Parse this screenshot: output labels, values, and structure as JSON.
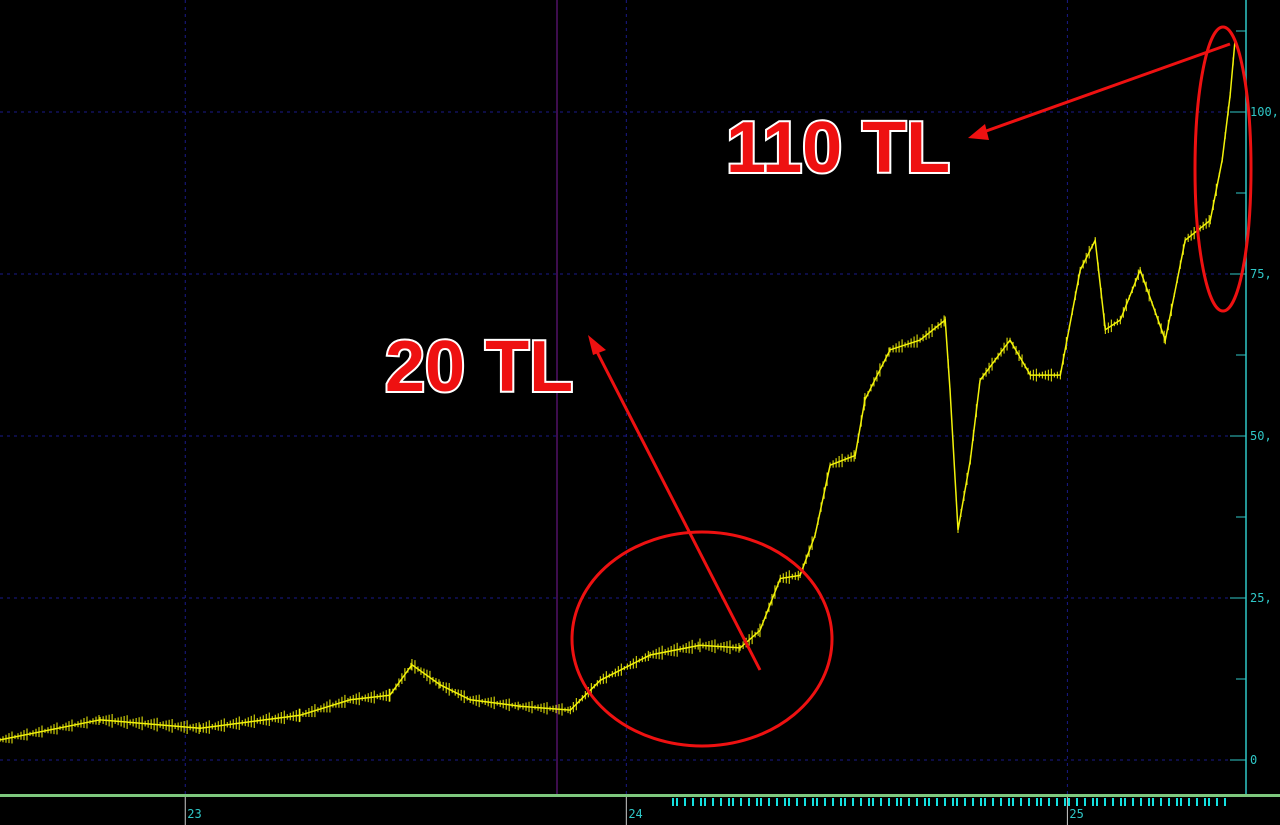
{
  "chart_data": {
    "type": "line",
    "title": "",
    "xlabel": "",
    "ylabel": "",
    "xlim": [
      22.58,
      25.38
    ],
    "ylim": [
      -5,
      115
    ],
    "x_ticks": [
      23,
      24,
      25
    ],
    "x_tick_labels": [
      "23",
      "24",
      "25"
    ],
    "y_ticks": [
      0,
      25,
      50,
      75,
      100
    ],
    "y_tick_labels": [
      "0",
      "25,",
      "50,",
      "75,",
      "100,"
    ],
    "grid": true,
    "series": [
      {
        "color": "#f2f20a",
        "x": [
          22.58,
          22.807,
          23.034,
          23.26,
          23.374,
          23.464,
          23.514,
          23.578,
          23.646,
          23.759,
          23.873,
          23.941,
          24.054,
          24.167,
          24.258,
          24.303,
          24.349,
          24.394,
          24.428,
          24.462,
          24.519,
          24.541,
          24.598,
          24.666,
          24.723,
          24.734,
          24.752,
          24.78,
          24.802,
          24.87,
          24.916,
          24.984,
          25.029,
          25.063,
          25.086,
          25.12,
          25.165,
          25.222,
          25.267,
          25.324,
          25.351,
          25.369,
          25.38
        ],
        "y": [
          3.1,
          6.2,
          4.9,
          6.9,
          9.3,
          10,
          14.7,
          11.6,
          9.3,
          8.3,
          7.7,
          12.3,
          16.2,
          17.7,
          17.3,
          20,
          28,
          28.5,
          34.7,
          45.5,
          47,
          55.6,
          63.3,
          64.8,
          67.9,
          57,
          35.5,
          46.3,
          58.6,
          64.8,
          59.4,
          59.4,
          75.6,
          80.2,
          66.4,
          67.9,
          75.6,
          64.8,
          80.2,
          83.3,
          92.6,
          102.6,
          111
        ]
      }
    ],
    "annotations": [
      {
        "text": "20 TL",
        "color": "#ee1111"
      },
      {
        "text": "110 TL",
        "color": "#ee1111"
      }
    ],
    "colors": {
      "background": "#000000",
      "axis": "#2fc7c7",
      "grid": "#1a1a8a",
      "marker_line": "#7a1a9a",
      "annotation": "#ee1111"
    }
  }
}
